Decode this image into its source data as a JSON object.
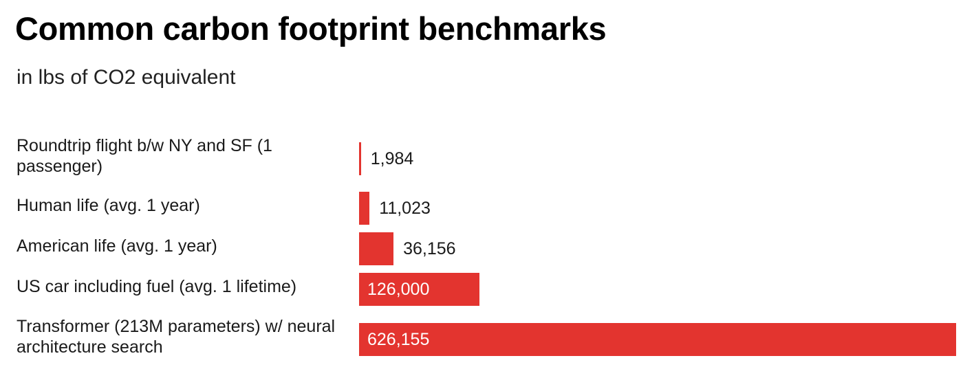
{
  "chart_data": {
    "type": "bar",
    "orientation": "horizontal",
    "title": "Common carbon footprint benchmarks",
    "subtitle": "in lbs of CO2 equivalent",
    "categories": [
      "Roundtrip flight b/w NY and SF (1 passenger)",
      "Human life (avg. 1 year)",
      "American life (avg. 1 year)",
      "US car including fuel (avg. 1 lifetime)",
      "Transformer (213M parameters) w/ neural architecture search"
    ],
    "values": [
      1984,
      11023,
      36156,
      126000,
      626155
    ],
    "value_labels": [
      "1,984",
      "11,023",
      "36,156",
      "126,000",
      "626,155"
    ],
    "xlim": [
      0,
      626155
    ],
    "grid": false,
    "legend": "none",
    "bar_color": "#e3342f"
  }
}
